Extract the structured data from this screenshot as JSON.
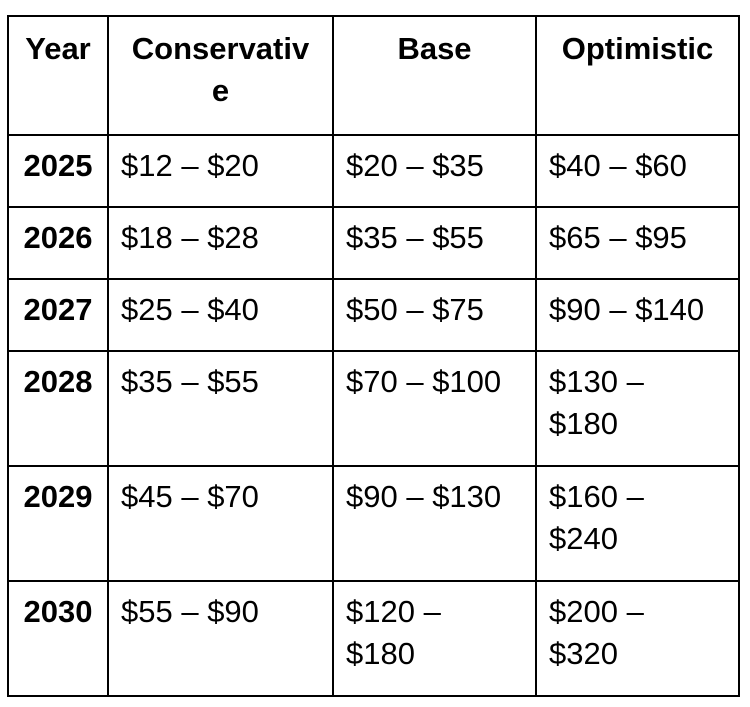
{
  "table": {
    "headers": [
      "Year",
      "Conservativ\ne",
      "Base",
      "Optimistic"
    ],
    "rows": [
      [
        "2025",
        "$12 – $20",
        "$20 – $35",
        "$40 – $60"
      ],
      [
        "2026",
        "$18 – $28",
        "$35 – $55",
        "$65 – $95"
      ],
      [
        "2027",
        "$25 – $40",
        "$50 – $75",
        "$90 – $140"
      ],
      [
        "2028",
        "$35 – $55",
        "$70 – $100",
        "$130 –\n$180"
      ],
      [
        "2029",
        "$45 – $70",
        "$90 – $130",
        "$160 –\n$240"
      ],
      [
        "2030",
        "$55 – $90",
        "$120 –\n$180",
        "$200 –\n$320"
      ]
    ]
  },
  "chart_data": {
    "type": "table",
    "title": "",
    "columns": [
      "Year",
      "Conservative",
      "Base",
      "Optimistic"
    ],
    "rows": [
      {
        "year": 2025,
        "conservative": "$12 – $20",
        "base": "$20 – $35",
        "optimistic": "$40 – $60"
      },
      {
        "year": 2026,
        "conservative": "$18 – $28",
        "base": "$35 – $55",
        "optimistic": "$65 – $95"
      },
      {
        "year": 2027,
        "conservative": "$25 – $40",
        "base": "$50 – $75",
        "optimistic": "$90 – $140"
      },
      {
        "year": 2028,
        "conservative": "$35 – $55",
        "base": "$70 – $100",
        "optimistic": "$130 – $180"
      },
      {
        "year": 2029,
        "conservative": "$45 – $70",
        "base": "$90 – $130",
        "optimistic": "$160 – $240"
      },
      {
        "year": 2030,
        "conservative": "$55 – $90",
        "base": "$120 – $180",
        "optimistic": "$200 – $320"
      }
    ]
  },
  "colors": {
    "border": "#000000",
    "text": "#000000",
    "background": "#ffffff"
  }
}
